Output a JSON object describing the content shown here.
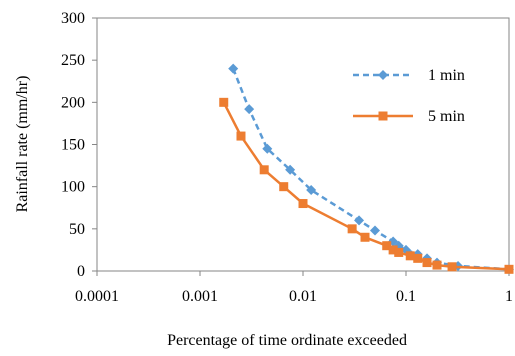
{
  "chart_data": {
    "type": "line",
    "title": "",
    "xlabel": "Percentage of time ordinate exceeded",
    "ylabel": "Rainfall rate (mm/hr)",
    "x_scale": "log",
    "xlim": [
      0.0001,
      1
    ],
    "ylim": [
      0,
      300
    ],
    "x_ticks": [
      "0.0001",
      "0.001",
      "0.01",
      "0.1",
      "1"
    ],
    "y_ticks": [
      "0",
      "50",
      "100",
      "150",
      "200",
      "250",
      "300"
    ],
    "grid": false,
    "legend_position": "right",
    "series": [
      {
        "name": "1 min",
        "color": "#5b9bd5",
        "line_style": "dashed",
        "marker": "diamond",
        "x": [
          0.0021,
          0.003,
          0.0045,
          0.0075,
          0.012,
          0.035,
          0.05,
          0.075,
          0.085,
          0.1,
          0.13,
          0.16,
          0.2,
          0.32,
          1.0
        ],
        "y": [
          240,
          192,
          145,
          120,
          96,
          60,
          48,
          35,
          30,
          25,
          20,
          15,
          10,
          6,
          2
        ]
      },
      {
        "name": "5 min",
        "color": "#ed7d31",
        "line_style": "solid",
        "marker": "square",
        "x": [
          0.0017,
          0.0025,
          0.0042,
          0.0065,
          0.01,
          0.03,
          0.04,
          0.065,
          0.075,
          0.085,
          0.11,
          0.13,
          0.16,
          0.2,
          0.28,
          1.0
        ],
        "y": [
          200,
          160,
          120,
          100,
          80,
          50,
          40,
          30,
          25,
          22,
          18,
          15,
          10,
          7,
          5,
          2
        ]
      }
    ]
  }
}
